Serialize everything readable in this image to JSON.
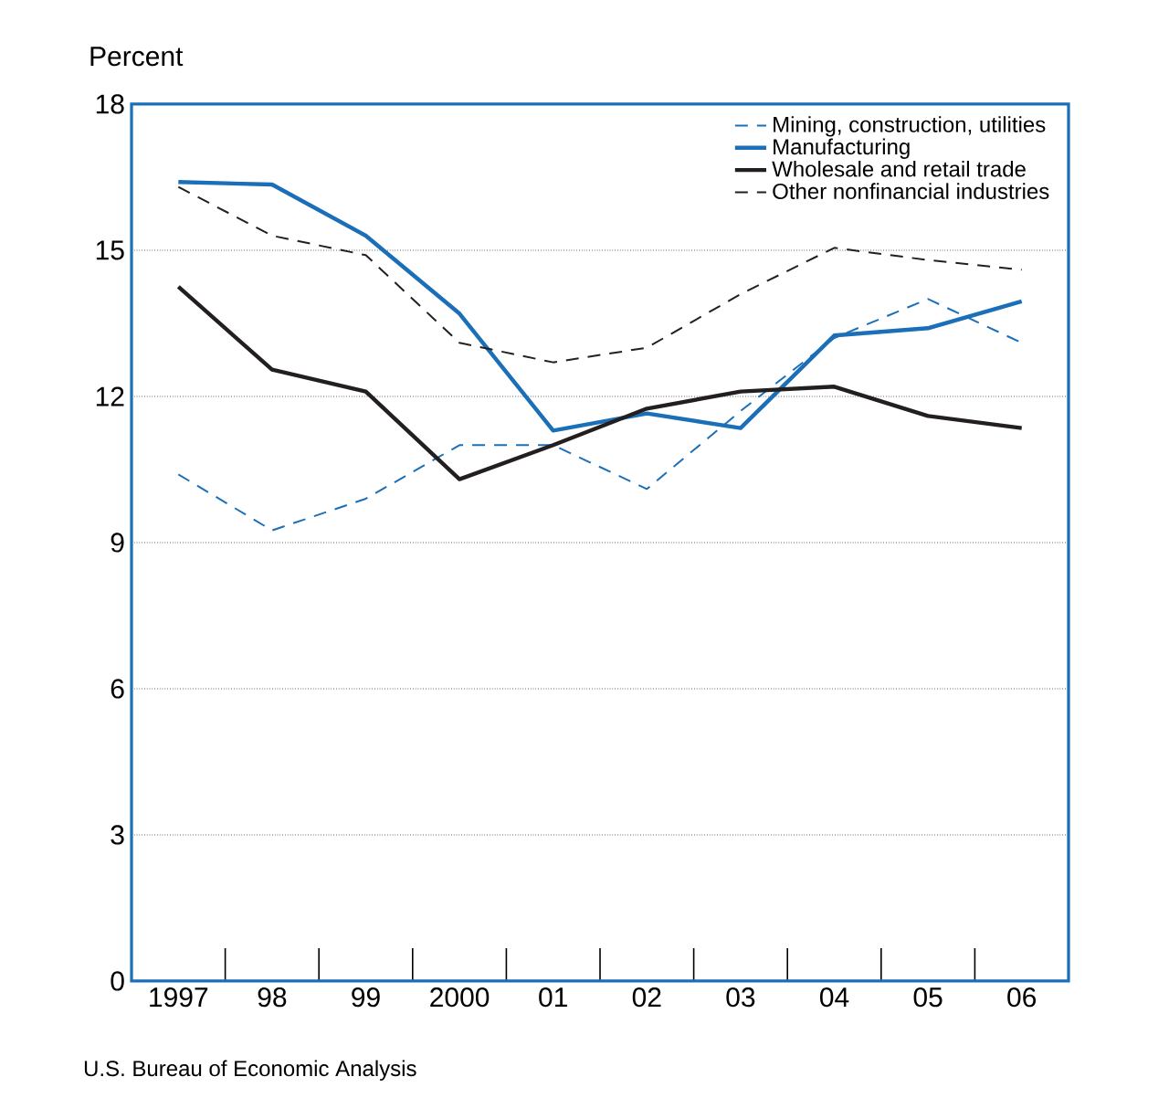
{
  "chart_data": {
    "type": "line",
    "ylabel": "Percent",
    "categories": [
      "1997",
      "98",
      "99",
      "2000",
      "01",
      "02",
      "03",
      "04",
      "05",
      "06"
    ],
    "series": [
      {
        "name": "Mining, construction, utilities",
        "color": "#1a6fb8",
        "line_style": "dashed",
        "values": [
          10.4,
          9.25,
          9.9,
          11.0,
          11.0,
          10.1,
          11.7,
          13.2,
          14.0,
          13.1
        ]
      },
      {
        "name": "Manufacturing",
        "color": "#1a6fb8",
        "line_style": "solid",
        "values": [
          16.4,
          16.35,
          15.3,
          13.7,
          11.3,
          11.65,
          11.35,
          13.25,
          13.4,
          13.95
        ]
      },
      {
        "name": "Wholesale and retail trade",
        "color": "#231f20",
        "line_style": "solid",
        "values": [
          14.25,
          12.55,
          12.1,
          10.3,
          11.0,
          11.75,
          12.1,
          12.2,
          11.6,
          11.35
        ]
      },
      {
        "name": "Other nonfinancial industries",
        "color": "#231f20",
        "line_style": "dashed",
        "values": [
          16.3,
          15.3,
          14.9,
          13.1,
          12.7,
          13.0,
          14.1,
          15.05,
          14.8,
          14.6
        ]
      }
    ],
    "ylim": [
      0,
      18
    ],
    "yticks": [
      0,
      3,
      6,
      9,
      12,
      15,
      18
    ],
    "grid": "y",
    "legend": "top right",
    "marker": "none",
    "annotations": [
      "U.S. Bureau of Economic Analysis"
    ]
  }
}
